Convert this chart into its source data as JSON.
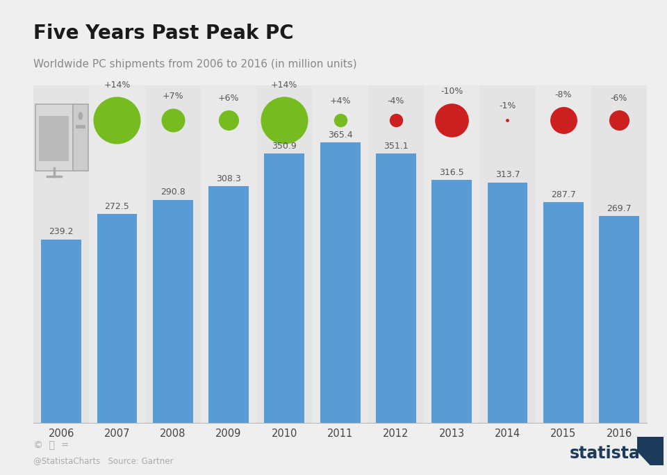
{
  "title": "Five Years Past Peak PC",
  "subtitle": "Worldwide PC shipments from 2006 to 2016 (in million units)",
  "years": [
    2006,
    2007,
    2008,
    2009,
    2010,
    2011,
    2012,
    2013,
    2014,
    2015,
    2016
  ],
  "values": [
    239.2,
    272.5,
    290.8,
    308.3,
    350.9,
    365.4,
    351.1,
    316.5,
    313.7,
    287.7,
    269.7
  ],
  "pct_changes": [
    null,
    14,
    7,
    6,
    14,
    4,
    -4,
    -10,
    -1,
    -8,
    -6
  ],
  "pct_labels": [
    "",
    "+14%",
    "+7%",
    "+6%",
    "+14%",
    "+4%",
    "-4%",
    "-10%",
    "-1%",
    "-8%",
    "-6%"
  ],
  "bar_color": "#5B9BD5",
  "green_color": "#76BC21",
  "red_color": "#CC2020",
  "bg_color": "#EFEFEF",
  "stripe_color_even": "#E4E4E4",
  "stripe_color_odd": "#E9E9E9",
  "title_color": "#1A1A1A",
  "subtitle_color": "#888888",
  "value_color": "#555555",
  "pct_color": "#555555",
  "footer_color": "#AAAAAA",
  "statista_color": "#1C3A5A",
  "source_text": "@StatistaCharts   Source: Gartner",
  "statista_text": "statista"
}
